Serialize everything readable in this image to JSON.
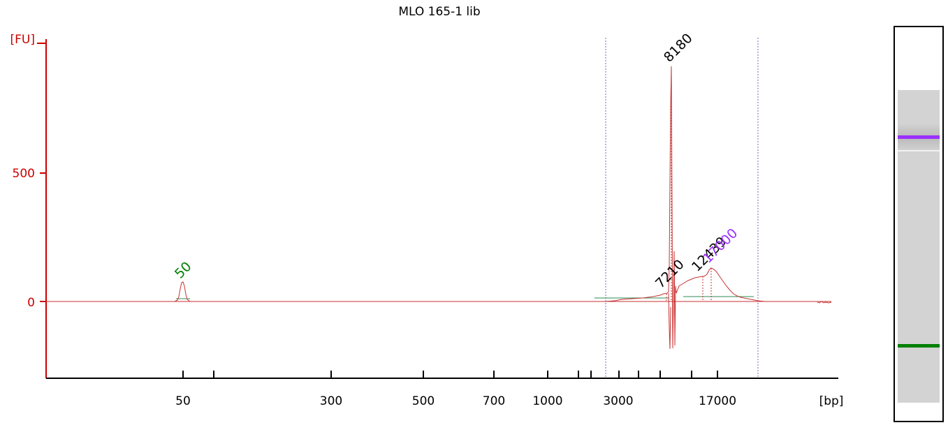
{
  "chart_data": {
    "type": "line",
    "title": "MLO 165-1 lib",
    "ylabel": "[FU]",
    "xlabel": "[bp]",
    "y_ticks": [
      0,
      500
    ],
    "ylim": [
      -300,
      1040
    ],
    "x_tick_labels": [
      "50",
      "300",
      "500",
      "700",
      "1000",
      "3000",
      "17000"
    ],
    "peaks": [
      {
        "label": "50",
        "color": "#008000"
      },
      {
        "label": "7210",
        "color": "#000000"
      },
      {
        "label": "8180",
        "color": "#000000"
      },
      {
        "label": "12439",
        "color": "#000000"
      },
      {
        "label": "17000",
        "color": "#9b30ff"
      }
    ],
    "colors": {
      "axis": "#cc0000",
      "trace": "#c83232",
      "region_lines": "#6a6ac8",
      "baseline": "#2e8b57"
    }
  },
  "gel": {
    "bands": [
      {
        "name": "upper-marker",
        "color": "#9b30ff"
      },
      {
        "name": "lower-marker",
        "color": "#008000"
      }
    ]
  }
}
